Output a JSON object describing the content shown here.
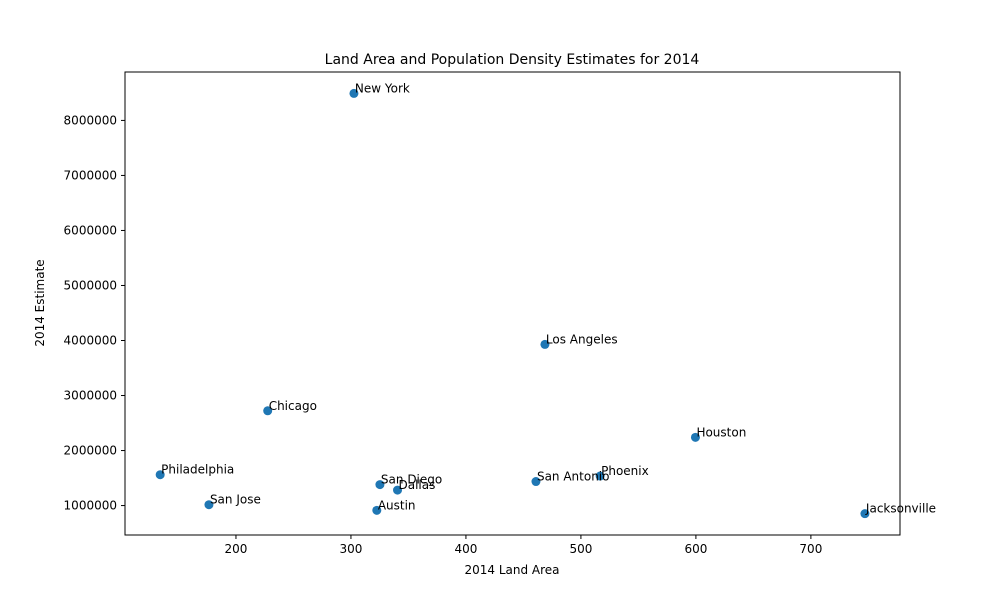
{
  "chart_data": {
    "type": "scatter",
    "title": "Land Area and Population Density Estimates for 2014",
    "xlabel": "2014 Land Area",
    "ylabel": "2014 Estimate",
    "xlim": [
      103.5,
      777.5
    ],
    "ylim": [
      465000,
      8880000
    ],
    "xticks": [
      "200",
      "300",
      "400",
      "500",
      "600",
      "700"
    ],
    "yticks": [
      "1000000",
      "2000000",
      "3000000",
      "4000000",
      "5000000",
      "6000000",
      "7000000",
      "8000000"
    ],
    "grid": false,
    "legend": "none",
    "marker_color": "#1f77b4",
    "points": [
      {
        "label": "New York",
        "x": 302.6,
        "y": 8491079
      },
      {
        "label": "Los Angeles",
        "x": 468.7,
        "y": 3928864
      },
      {
        "label": "Chicago",
        "x": 227.6,
        "y": 2722389
      },
      {
        "label": "Houston",
        "x": 599.6,
        "y": 2239558
      },
      {
        "label": "Philadelphia",
        "x": 134.1,
        "y": 1560297
      },
      {
        "label": "Phoenix",
        "x": 516.7,
        "y": 1537058
      },
      {
        "label": "San Antonio",
        "x": 460.9,
        "y": 1436697
      },
      {
        "label": "San Diego",
        "x": 325.2,
        "y": 1381069
      },
      {
        "label": "Dallas",
        "x": 340.5,
        "y": 1281047
      },
      {
        "label": "San Jose",
        "x": 176.5,
        "y": 1015785
      },
      {
        "label": "Austin",
        "x": 322.5,
        "y": 912791
      },
      {
        "label": "Jacksonville",
        "x": 747.0,
        "y": 853382
      }
    ]
  }
}
